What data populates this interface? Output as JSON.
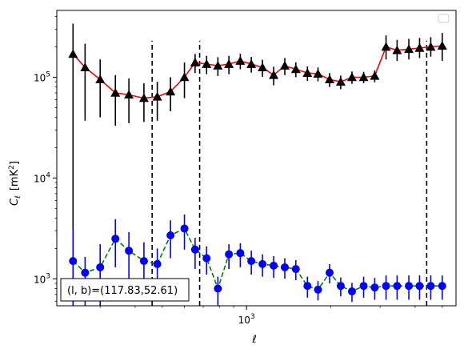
{
  "chart_data": {
    "type": "scatter",
    "xscale": "log",
    "yscale": "log",
    "xlim": [
      210,
      5600
    ],
    "ylim": [
      540,
      460000
    ],
    "grid": false,
    "legend": "top-right",
    "xlabel": "ℓ",
    "ylabel_main": "C",
    "ylabel_sub": "ℓ",
    "ylabel_unit": "[mK",
    "ylabel_unit_sup": "2",
    "ylabel_unit_end": "]",
    "x_ticks": [
      {
        "value": 1000,
        "base": "10",
        "exp": "3"
      }
    ],
    "y_ticks": [
      {
        "value": 1000,
        "base": "10",
        "exp": "3"
      },
      {
        "value": 10000,
        "base": "10",
        "exp": "4"
      },
      {
        "value": 100000,
        "base": "10",
        "exp": "5"
      }
    ],
    "annotation": "(l, b)=(117.83,52.61)",
    "vlines": [
      460,
      680,
      4400
    ],
    "vline_ymax": 230000,
    "series": [
      {
        "color": "#ff0000",
        "marker": "triangle",
        "marker_color": "#000000",
        "err_color": "#000000",
        "linestyle": "solid",
        "x": [
          240,
          265,
          300,
          340,
          380,
          430,
          480,
          535,
          600,
          655,
          720,
          790,
          865,
          950,
          1040,
          1140,
          1250,
          1370,
          1500,
          1650,
          1800,
          1980,
          2170,
          2380,
          2620,
          2870,
          3150,
          3450,
          3800,
          4150,
          4550,
          5000
        ],
        "y": [
          170000,
          125000,
          95000,
          70000,
          67000,
          62000,
          64000,
          72000,
          100000,
          140000,
          135000,
          130000,
          135000,
          145000,
          135000,
          125000,
          105000,
          130000,
          120000,
          110000,
          108000,
          95000,
          90000,
          100000,
          100000,
          103000,
          200000,
          185000,
          190000,
          195000,
          200000,
          205000
        ],
        "err_lo": [
          170000,
          88000,
          55000,
          37000,
          32000,
          26000,
          27000,
          26000,
          38000,
          30000,
          28000,
          27000,
          28000,
          25000,
          24000,
          24000,
          22000,
          25000,
          20000,
          18000,
          17000,
          15000,
          14000,
          14000,
          13000,
          14000,
          50000,
          40000,
          40000,
          40000,
          40000,
          60000
        ],
        "err_hi": [
          170000,
          90000,
          55000,
          35000,
          30000,
          25000,
          26000,
          28000,
          40000,
          30000,
          28000,
          28000,
          28000,
          26000,
          24000,
          24000,
          22000,
          25000,
          20000,
          18000,
          17000,
          15000,
          14000,
          14000,
          13000,
          14000,
          60000,
          50000,
          50000,
          50000,
          50000,
          70000
        ]
      },
      {
        "color": "#008000",
        "marker": "circle",
        "marker_color": "#0000ff",
        "err_color": "#0000ff",
        "linestyle": "dashed",
        "x": [
          240,
          265,
          300,
          340,
          380,
          430,
          480,
          535,
          600,
          655,
          720,
          790,
          865,
          950,
          1040,
          1140,
          1250,
          1370,
          1500,
          1650,
          1800,
          1980,
          2170,
          2380,
          2620,
          2870,
          3150,
          3450,
          3800,
          4150,
          4550,
          5000
        ],
        "y": [
          1500,
          1150,
          1300,
          2500,
          1900,
          1500,
          1400,
          2700,
          3150,
          1950,
          1600,
          800,
          1750,
          1800,
          1500,
          1400,
          1350,
          1300,
          1250,
          850,
          780,
          1150,
          850,
          750,
          850,
          820,
          850,
          850,
          850,
          850,
          850,
          850
        ],
        "err_lo": [
          1200,
          700,
          800,
          1200,
          900,
          800,
          700,
          1100,
          1200,
          700,
          500,
          300,
          500,
          500,
          400,
          350,
          330,
          300,
          280,
          200,
          170,
          250,
          180,
          160,
          200,
          200,
          230,
          230,
          230,
          230,
          230,
          230
        ],
        "err_hi": [
          1600,
          500,
          900,
          1400,
          1000,
          800,
          600,
          1100,
          1200,
          600,
          500,
          250,
          450,
          450,
          400,
          350,
          330,
          300,
          280,
          200,
          170,
          250,
          180,
          160,
          200,
          200,
          230,
          230,
          230,
          230,
          230,
          230
        ]
      }
    ]
  }
}
